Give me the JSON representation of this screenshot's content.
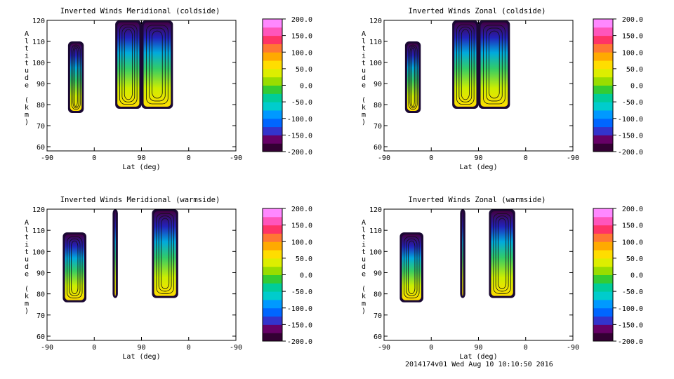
{
  "footer": "2014174v01 Wed Aug 10 10:10:50 2016",
  "colorbar": {
    "ticks": [
      "200.0",
      "150.0",
      "100.0",
      "50.0",
      "0.0",
      "-50.0",
      "-100.0",
      "-150.0",
      "-200.0"
    ],
    "colors": [
      "#330033",
      "#660066",
      "#3333cc",
      "#0066ff",
      "#0099ff",
      "#00cccc",
      "#00cc99",
      "#33cc33",
      "#99dd00",
      "#ddee00",
      "#ffdd00",
      "#ffaa00",
      "#ff7733",
      "#ff3366",
      "#ff55bb",
      "#ff88ff"
    ]
  },
  "chart_data": [
    {
      "type": "heatmap",
      "title": "Inverted Winds Meridional (coldside)",
      "xlabel": "Lat (deg)",
      "ylabel": "Altitude (km)",
      "xticks": [
        "-90",
        "0",
        "90",
        "0",
        "-90"
      ],
      "yticks": [
        "60",
        "70",
        "80",
        "90",
        "100",
        "110",
        "120"
      ],
      "ylim": [
        58,
        120
      ],
      "zlim": [
        -200,
        200
      ],
      "regions": [
        {
          "x": [
            -50,
            -20
          ],
          "y": [
            76,
            110
          ]
        },
        {
          "x": [
            40,
            90
          ],
          "y": [
            78,
            120
          ]
        },
        {
          "x": [
            90,
            150
          ],
          "y": [
            78,
            120
          ]
        }
      ]
    },
    {
      "type": "heatmap",
      "title": "Inverted Winds Zonal (coldside)",
      "xlabel": "Lat (deg)",
      "ylabel": "Altitude (km)",
      "xticks": [
        "-90",
        "0",
        "90",
        "0",
        "-90"
      ],
      "yticks": [
        "60",
        "70",
        "80",
        "90",
        "100",
        "110",
        "120"
      ],
      "ylim": [
        58,
        120
      ],
      "zlim": [
        -200,
        200
      ],
      "regions": [
        {
          "x": [
            -50,
            -20
          ],
          "y": [
            76,
            110
          ]
        },
        {
          "x": [
            40,
            90
          ],
          "y": [
            78,
            120
          ]
        },
        {
          "x": [
            90,
            150
          ],
          "y": [
            78,
            120
          ]
        }
      ]
    },
    {
      "type": "heatmap",
      "title": "Inverted Winds Meridional (warmside)",
      "xlabel": "Lat (deg)",
      "ylabel": "Altitude (km)",
      "xticks": [
        "-90",
        "0",
        "90",
        "0",
        "-90"
      ],
      "yticks": [
        "60",
        "70",
        "80",
        "90",
        "100",
        "110",
        "120"
      ],
      "ylim": [
        58,
        120
      ],
      "zlim": [
        -200,
        200
      ],
      "regions": [
        {
          "x": [
            -60,
            -15
          ],
          "y": [
            76,
            109
          ]
        },
        {
          "x": [
            35,
            45
          ],
          "y": [
            78,
            120
          ]
        },
        {
          "x": [
            110,
            160
          ],
          "y": [
            78,
            120
          ]
        }
      ]
    },
    {
      "type": "heatmap",
      "title": "Inverted Winds Zonal (warmside)",
      "xlabel": "Lat (deg)",
      "ylabel": "Altitude (km)",
      "xticks": [
        "-90",
        "0",
        "90",
        "0",
        "-90"
      ],
      "yticks": [
        "60",
        "70",
        "80",
        "90",
        "100",
        "110",
        "120"
      ],
      "ylim": [
        58,
        120
      ],
      "zlim": [
        -200,
        200
      ],
      "regions": [
        {
          "x": [
            -60,
            -15
          ],
          "y": [
            76,
            109
          ]
        },
        {
          "x": [
            55,
            65
          ],
          "y": [
            78,
            120
          ]
        },
        {
          "x": [
            110,
            160
          ],
          "y": [
            78,
            120
          ]
        }
      ]
    }
  ]
}
